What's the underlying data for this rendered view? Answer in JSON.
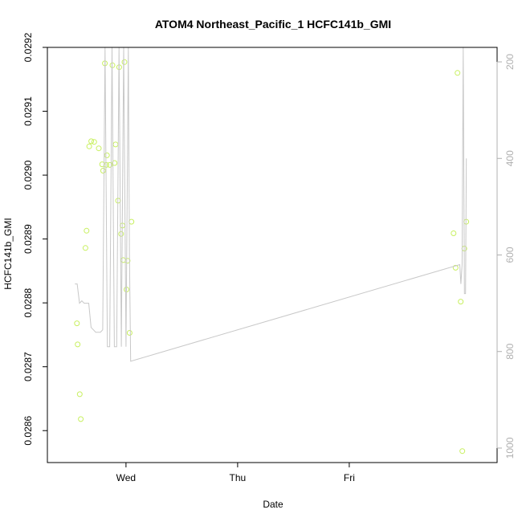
{
  "chart_data": {
    "type": "scatter",
    "title": "ATOM4 Northeast_Pacific_1 HCFC141b_GMI",
    "xlabel": "Date",
    "ylabel": "HCFC141b_GMI",
    "x_ticks": [
      "Wed",
      "Thu",
      "Fri"
    ],
    "x_range": [
      "Tue 07:06",
      "Sat 07:47"
    ],
    "left_axis": {
      "range": [
        0.02855,
        0.0292
      ],
      "ticks": [
        "0.0286",
        "0.0287",
        "0.0288",
        "0.0289",
        "0.0290",
        "0.0291",
        "0.0292"
      ]
    },
    "right_axis": {
      "reversed": true,
      "range": [
        1030,
        170
      ],
      "ticks": [
        "200",
        "400",
        "600",
        "800",
        "1000"
      ]
    },
    "grid": false,
    "colors": {
      "points": "#c8f060",
      "line": "#c8c8c8",
      "right_axis": "#b0b0b0",
      "frame": "#000000"
    },
    "series": [
      {
        "type": "scatter",
        "axis": "left",
        "x": [
          "Tue 13:27",
          "Tue 13:37",
          "Tue 14:03",
          "Tue 14:17",
          "Tue 15:17",
          "Tue 15:31",
          "Tue 16:06",
          "Tue 16:32",
          "Tue 17:10",
          "Tue 18:09",
          "Tue 18:52",
          "Tue 19:05",
          "Tue 19:28",
          "Tue 19:45",
          "Tue 19:55",
          "Tue 20:31",
          "Tue 21:05",
          "Tue 21:33",
          "Tue 21:45",
          "Tue 22:18",
          "Tue 22:32",
          "Tue 22:57",
          "Tue 23:15",
          "Tue 23:24",
          "Tue 23:40",
          "Wed 00:06",
          "Wed 00:21",
          "Wed 00:47",
          "Wed 01:11",
          "Fri 22:26",
          "Fri 22:51",
          "Fri 23:16",
          "Fri 23:58",
          "Sat 00:18",
          "Sat 00:44",
          "Sat 01:09"
        ],
        "y": [
          0.028768,
          0.028735,
          0.028657,
          0.028618,
          0.028886,
          0.028913,
          0.029045,
          0.029053,
          0.029052,
          0.029042,
          0.029017,
          0.029007,
          0.029175,
          0.029016,
          0.029031,
          0.029016,
          0.029172,
          0.029019,
          0.029048,
          0.02896,
          0.029169,
          0.028908,
          0.028921,
          0.028867,
          0.029177,
          0.028821,
          0.028866,
          0.028753,
          0.028927,
          0.028909,
          0.028855,
          0.02916,
          0.028802,
          0.028568,
          0.028885,
          0.028927
        ]
      },
      {
        "type": "line",
        "axis": "right",
        "name": "",
        "x": [
          "Tue 13:00",
          "Tue 13:30",
          "Tue 14:00",
          "Tue 14:30",
          "Tue 15:00",
          "Tue 15:30",
          "Tue 16:00",
          "Tue 16:30",
          "Tue 17:00",
          "Tue 17:30",
          "Tue 18:00",
          "Tue 18:30",
          "Tue 19:00",
          "Tue 19:30",
          "Tue 20:00",
          "Tue 20:30",
          "Tue 21:00",
          "Tue 21:30",
          "Tue 22:00",
          "Tue 22:30",
          "Tue 23:00",
          "Tue 23:30",
          "Wed 00:00",
          "Wed 00:30",
          "Wed 00:45",
          "Wed 01:00",
          "Fri 23:45",
          "Sat 00:00",
          "Sat 00:15",
          "Sat 00:30",
          "Sat 00:45",
          "Sat 01:00",
          "Sat 01:10"
        ],
        "y": [
          660,
          660,
          700,
          695,
          700,
          700,
          700,
          750,
          755,
          760,
          760,
          760,
          755,
          170,
          790,
          790,
          170,
          790,
          790,
          170,
          790,
          170,
          790,
          170,
          600,
          820,
          620,
          660,
          620,
          170,
          680,
          680,
          400
        ]
      }
    ]
  }
}
